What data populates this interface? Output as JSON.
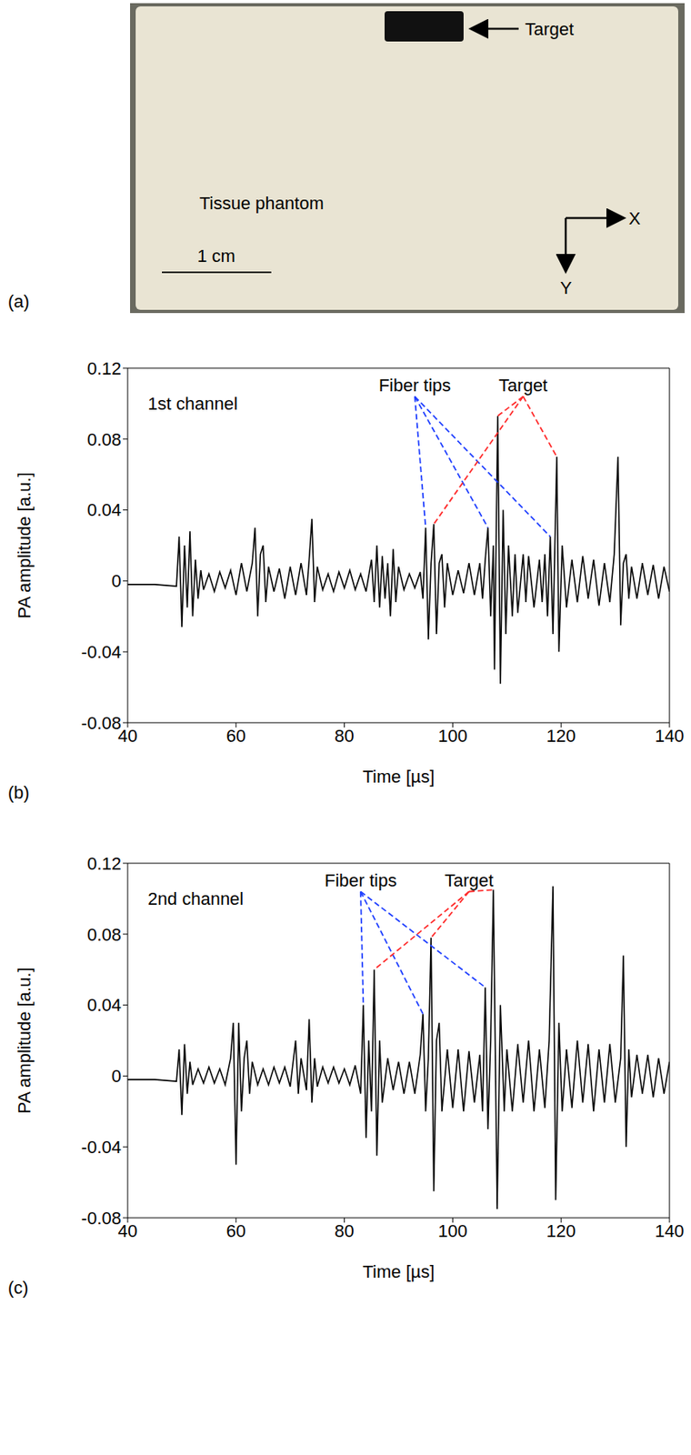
{
  "panel_a": {
    "letter": "(a)",
    "target_label": "Target",
    "phantom_label": "Tissue phantom",
    "scale_bar": "1 cm",
    "x_axis": "X",
    "y_axis": "Y"
  },
  "chart_data": [
    {
      "type": "line",
      "letter": "(b)",
      "channel_label": "1st channel",
      "xlabel": "Time [µs]",
      "ylabel": "PA amplitude [a.u.]",
      "xlim": [
        40,
        140
      ],
      "ylim": [
        -0.08,
        0.12
      ],
      "xticks": [
        40,
        60,
        80,
        100,
        120,
        140
      ],
      "yticks": [
        -0.08,
        -0.04,
        0,
        0.04,
        0.08,
        0.12
      ],
      "color": "#000000",
      "x": [
        40,
        45,
        49,
        49.5,
        50,
        50.5,
        51,
        51.5,
        52,
        52.5,
        53,
        53.5,
        54,
        55,
        56,
        57,
        58,
        59,
        60,
        61,
        62,
        63,
        63.5,
        64,
        64.5,
        65,
        65.5,
        66,
        67,
        68,
        69,
        70,
        71,
        72,
        73,
        73.5,
        74,
        74.5,
        75,
        76,
        77,
        78,
        79,
        80,
        81,
        82,
        83,
        84,
        85,
        85.5,
        86,
        86.5,
        87,
        87.5,
        88,
        88.5,
        89,
        89.5,
        90,
        91,
        92,
        93,
        94,
        94.5,
        95,
        95.5,
        96,
        96.5,
        97,
        97.5,
        98,
        98.5,
        99,
        100,
        101,
        102,
        103,
        104,
        105,
        105.5,
        106,
        106.5,
        107,
        107.5,
        107.7,
        108.3,
        108.8,
        109.3,
        109.8,
        110.3,
        111,
        111.5,
        112,
        113,
        113.5,
        114,
        115,
        116,
        116.5,
        117,
        117.5,
        118,
        118.5,
        119.2,
        119.6,
        120.2,
        121,
        122,
        123,
        124,
        125,
        126,
        127,
        128,
        129,
        129.8,
        130.5,
        131,
        131.5,
        132,
        132.5,
        133,
        134,
        135,
        136,
        137,
        138,
        139,
        140
      ],
      "values": [
        -0.002,
        -0.002,
        -0.003,
        0.025,
        -0.026,
        0.02,
        -0.015,
        0.028,
        -0.02,
        0.012,
        -0.01,
        0.006,
        -0.005,
        0.004,
        -0.006,
        0.005,
        -0.004,
        0.006,
        -0.008,
        0.01,
        -0.006,
        0.01,
        0.03,
        -0.02,
        0.015,
        0.02,
        -0.012,
        0.008,
        -0.006,
        0.007,
        -0.01,
        0.008,
        -0.008,
        0.01,
        -0.008,
        0.012,
        0.035,
        -0.012,
        0.008,
        -0.005,
        0.004,
        -0.006,
        0.005,
        -0.004,
        0.006,
        -0.005,
        0.004,
        -0.006,
        0.012,
        -0.012,
        0.02,
        -0.015,
        0.014,
        -0.01,
        0.01,
        -0.02,
        0.018,
        -0.012,
        0.008,
        -0.005,
        0.004,
        -0.004,
        0.005,
        -0.01,
        0.03,
        -0.033,
        0.01,
        0.032,
        -0.03,
        0.01,
        0.015,
        -0.015,
        0.01,
        -0.008,
        0.006,
        -0.007,
        0.01,
        -0.008,
        0.01,
        -0.01,
        0.012,
        0.03,
        -0.02,
        0.02,
        -0.05,
        0.093,
        -0.058,
        0.04,
        -0.03,
        0.02,
        -0.02,
        0.015,
        -0.018,
        0.015,
        -0.012,
        0.014,
        -0.015,
        0.012,
        -0.012,
        0.015,
        -0.02,
        0.025,
        -0.03,
        0.07,
        -0.04,
        0.02,
        -0.015,
        0.012,
        -0.012,
        0.014,
        -0.01,
        0.012,
        -0.014,
        0.01,
        -0.012,
        0.015,
        0.07,
        -0.025,
        0.01,
        0.015,
        -0.01,
        0.008,
        -0.01,
        0.01,
        -0.008,
        0.009,
        -0.01,
        0.008,
        -0.006
      ],
      "annotations": [
        {
          "text": "Fiber tips",
          "color": "#1f3fff",
          "points": [
            [
              95,
              0.03
            ],
            [
              106.5,
              0.03
            ],
            [
              118,
              0.025
            ]
          ]
        },
        {
          "text": "Target",
          "color": "#ff2a2a",
          "points": [
            [
              96.5,
              0.032
            ],
            [
              108.3,
              0.093
            ],
            [
              119.2,
              0.07
            ]
          ]
        }
      ]
    },
    {
      "type": "line",
      "letter": "(c)",
      "channel_label": "2nd channel",
      "xlabel": "Time [µs]",
      "ylabel": "PA amplitude [a.u.]",
      "xlim": [
        40,
        140
      ],
      "ylim": [
        -0.08,
        0.12
      ],
      "xticks": [
        40,
        60,
        80,
        100,
        120,
        140
      ],
      "yticks": [
        -0.08,
        -0.04,
        0,
        0.04,
        0.08,
        0.12
      ],
      "color": "#000000",
      "x": [
        40,
        45,
        49,
        49.5,
        50,
        50.5,
        51,
        51.5,
        52,
        53,
        54,
        55,
        56,
        57,
        58,
        59,
        59.5,
        60,
        60.5,
        61,
        61.5,
        62,
        62.5,
        63,
        64,
        65,
        66,
        67,
        68,
        69,
        70,
        71,
        71.5,
        72,
        73,
        73.5,
        74,
        74.5,
        75,
        76,
        77,
        78,
        79,
        80,
        81,
        82,
        83,
        83.5,
        84,
        84.5,
        85,
        85.5,
        86,
        86.5,
        87,
        88,
        89,
        90,
        91,
        92,
        93,
        94,
        94.5,
        95,
        95.5,
        96,
        96.5,
        97,
        97.5,
        98,
        99,
        100,
        101,
        102,
        103,
        104,
        105,
        105.5,
        106,
        106.5,
        107,
        107.5,
        108.2,
        108.8,
        109.5,
        110,
        111,
        112,
        113,
        114,
        115,
        116,
        117,
        117.8,
        118.5,
        119,
        119.6,
        120.2,
        121,
        122,
        123,
        124,
        125,
        126,
        127,
        128,
        129,
        130,
        131,
        131.5,
        132,
        132.5,
        133,
        134,
        135,
        136,
        137,
        138,
        139,
        140
      ],
      "values": [
        -0.002,
        -0.002,
        -0.003,
        0.015,
        -0.022,
        0.018,
        -0.01,
        0.008,
        -0.005,
        0.004,
        -0.004,
        0.005,
        -0.004,
        0.004,
        -0.005,
        0.01,
        0.03,
        -0.05,
        0.03,
        -0.02,
        0.01,
        0.02,
        -0.01,
        0.008,
        -0.005,
        0.004,
        -0.005,
        0.005,
        -0.004,
        0.005,
        -0.006,
        0.02,
        -0.01,
        0.01,
        -0.008,
        0.032,
        -0.015,
        0.01,
        -0.006,
        0.005,
        -0.004,
        0.005,
        -0.004,
        0.004,
        -0.005,
        0.006,
        -0.01,
        0.04,
        -0.035,
        0.02,
        -0.02,
        0.06,
        -0.045,
        0.02,
        -0.015,
        0.01,
        -0.008,
        0.008,
        -0.01,
        0.008,
        -0.01,
        0.012,
        0.035,
        -0.02,
        0.01,
        0.078,
        -0.065,
        0.02,
        0.03,
        -0.02,
        0.015,
        -0.018,
        0.015,
        -0.02,
        0.014,
        -0.015,
        0.012,
        -0.02,
        0.05,
        -0.03,
        0.02,
        0.105,
        -0.075,
        0.04,
        -0.02,
        0.015,
        -0.02,
        0.018,
        -0.015,
        0.02,
        -0.02,
        0.015,
        -0.018,
        0.02,
        0.107,
        -0.07,
        0.03,
        -0.02,
        0.015,
        -0.018,
        0.02,
        -0.015,
        0.018,
        -0.02,
        0.015,
        -0.015,
        0.018,
        -0.015,
        0.01,
        0.068,
        -0.04,
        0.015,
        -0.012,
        0.012,
        -0.01,
        0.012,
        -0.012,
        0.01,
        -0.01,
        0.008
      ],
      "annotations": [
        {
          "text": "Fiber tips",
          "color": "#1f3fff",
          "points": [
            [
              83.5,
              0.04
            ],
            [
              94.5,
              0.035
            ],
            [
              106,
              0.05
            ]
          ]
        },
        {
          "text": "Target",
          "color": "#ff2a2a",
          "points": [
            [
              85.5,
              0.06
            ],
            [
              96,
              0.078
            ],
            [
              107.5,
              0.105
            ]
          ]
        }
      ]
    }
  ]
}
